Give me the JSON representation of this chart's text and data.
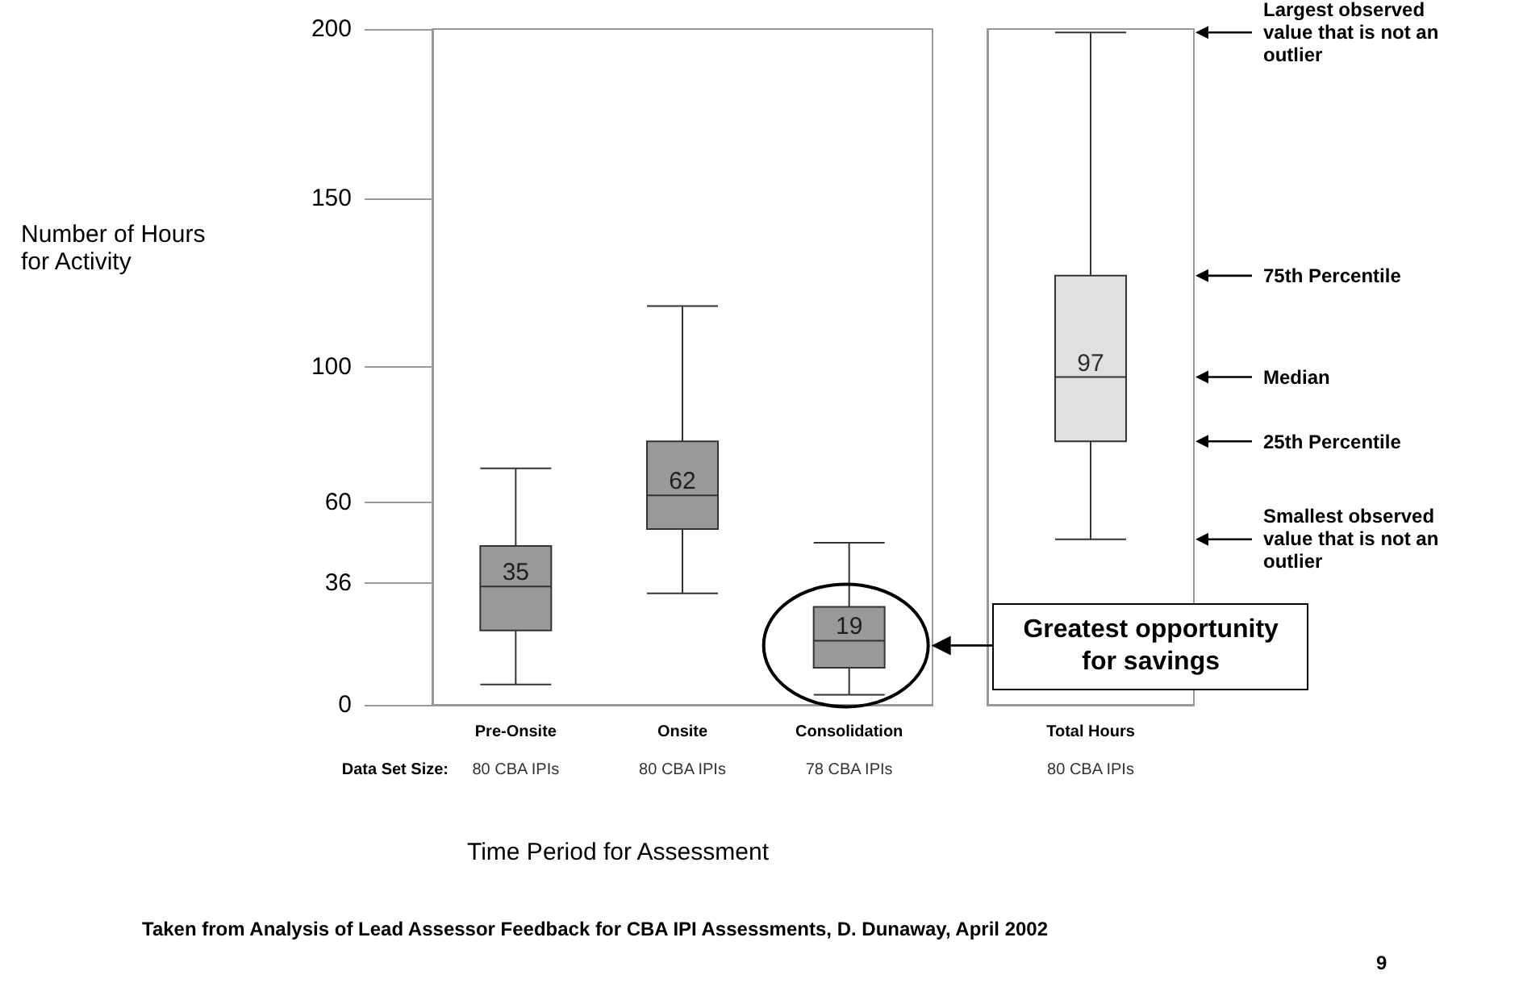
{
  "chart_data": [
    {
      "type": "box",
      "ylabel": "Number of Hours for Activity",
      "xlabel": "Time Period for Assessment",
      "categories": [
        "Pre-Onsite",
        "Onsite",
        "Consolidation"
      ],
      "boxes": [
        {
          "low": 6,
          "q1": 22,
          "median": 35,
          "q3": 47,
          "high": 70
        },
        {
          "low": 33,
          "q1": 52,
          "median": 62,
          "q3": 78,
          "high": 118
        },
        {
          "low": 3,
          "q1": 11,
          "median": 19,
          "q3": 29,
          "high": 48
        }
      ],
      "colors": [
        "#999999",
        "#999999",
        "#999999"
      ],
      "value_labels": [
        "35",
        "62",
        "19"
      ],
      "ylim": [
        0,
        200
      ],
      "yticks": [
        0,
        36,
        60,
        100,
        150,
        200
      ],
      "grid": false,
      "annotations": [
        "Data Set Size:",
        "Taken from Analysis of Lead Assessor Feedback for CBA IPI Assessments, D. Dunaway, April 2002",
        "9",
        "80 CBA IPIs",
        "80 CBA IPIs",
        "78 CBA IPIs",
        "Greatest opportunity for savings"
      ]
    },
    {
      "type": "box",
      "categories": [
        "Total Hours"
      ],
      "boxes": [
        {
          "low": 49,
          "q1": 78,
          "median": 97,
          "q3": 127,
          "high": 199
        }
      ],
      "colors": [
        "#e0e0e0"
      ],
      "value_labels": [
        "97"
      ],
      "ylim": [
        0,
        200
      ],
      "tick_labels": "x",
      "grid": false,
      "annotations": [
        "80 CBA IPIs",
        "Largest observed value that is not an outlier",
        "75th Percentile",
        "Median",
        "25th Percentile",
        "Smallest observed value that is not an outlier"
      ]
    }
  ]
}
